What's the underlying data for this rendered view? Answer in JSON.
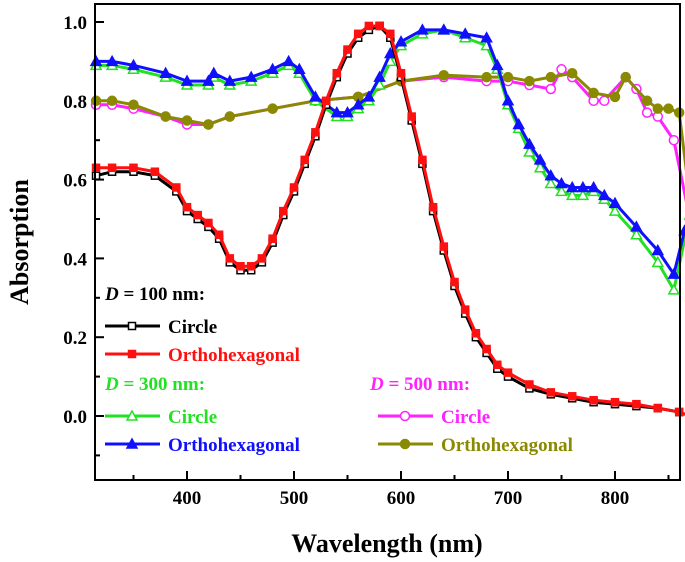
{
  "chart_data": {
    "type": "line",
    "xlabel": "Wavelength (nm)",
    "ylabel": "Absorption",
    "xlim": [
      313,
      870
    ],
    "ylim": [
      -0.16,
      1.05
    ],
    "xticks": [
      400,
      500,
      600,
      700,
      800
    ],
    "yticks": [
      0.0,
      0.2,
      0.4,
      0.6,
      0.8,
      1.0
    ],
    "ytick_labels": [
      "0.0",
      "0.2",
      "0.4",
      "0.6",
      "0.8",
      "1.0"
    ],
    "grid": false,
    "legend_groups": [
      {
        "label_prefix": "D",
        "label_suffix": " = 100 nm:",
        "color": "#000000"
      },
      {
        "label_prefix": "D",
        "label_suffix": " = 300 nm:",
        "color": "#22e022"
      },
      {
        "label_prefix": "D",
        "label_suffix": " = 500 nm:",
        "color": "#ff22ff"
      }
    ],
    "series": [
      {
        "name": "Circle",
        "group": "D = 100 nm",
        "color": "#000000",
        "marker": "square-open",
        "x": [
          315,
          330,
          350,
          370,
          390,
          400,
          410,
          420,
          430,
          440,
          450,
          460,
          470,
          480,
          490,
          500,
          510,
          520,
          530,
          540,
          550,
          560,
          570,
          580,
          590,
          600,
          610,
          620,
          630,
          640,
          650,
          660,
          670,
          680,
          690,
          700,
          720,
          740,
          760,
          780,
          800,
          820,
          840,
          860,
          870
        ],
        "y": [
          0.61,
          0.62,
          0.62,
          0.61,
          0.57,
          0.52,
          0.5,
          0.48,
          0.45,
          0.39,
          0.37,
          0.37,
          0.39,
          0.44,
          0.51,
          0.57,
          0.64,
          0.71,
          0.79,
          0.86,
          0.92,
          0.96,
          0.98,
          0.99,
          0.96,
          0.86,
          0.75,
          0.64,
          0.52,
          0.42,
          0.33,
          0.26,
          0.2,
          0.16,
          0.12,
          0.1,
          0.07,
          0.055,
          0.045,
          0.035,
          0.03,
          0.025,
          0.02,
          0.01,
          0.0
        ]
      },
      {
        "name": "Orthohexagonal",
        "group": "D = 100 nm",
        "color": "#ff1010",
        "marker": "square-filled",
        "x": [
          315,
          330,
          350,
          370,
          390,
          400,
          410,
          420,
          430,
          440,
          450,
          460,
          470,
          480,
          490,
          500,
          510,
          520,
          530,
          540,
          550,
          560,
          570,
          580,
          590,
          600,
          610,
          620,
          630,
          640,
          650,
          660,
          670,
          680,
          690,
          700,
          720,
          740,
          760,
          780,
          800,
          820,
          840,
          860,
          870
        ],
        "y": [
          0.63,
          0.63,
          0.63,
          0.62,
          0.58,
          0.53,
          0.51,
          0.49,
          0.46,
          0.4,
          0.38,
          0.38,
          0.4,
          0.45,
          0.52,
          0.58,
          0.65,
          0.72,
          0.8,
          0.87,
          0.93,
          0.97,
          0.99,
          0.99,
          0.97,
          0.87,
          0.76,
          0.65,
          0.53,
          0.43,
          0.34,
          0.27,
          0.21,
          0.17,
          0.13,
          0.11,
          0.08,
          0.06,
          0.05,
          0.04,
          0.035,
          0.03,
          0.02,
          0.01,
          0.0
        ]
      },
      {
        "name": "Circle",
        "group": "D = 300 nm",
        "color": "#22e022",
        "marker": "triangle-open",
        "x": [
          315,
          330,
          350,
          380,
          400,
          420,
          425,
          440,
          460,
          480,
          495,
          505,
          520,
          540,
          550,
          560,
          570,
          580,
          590,
          600,
          620,
          640,
          660,
          680,
          690,
          700,
          710,
          720,
          730,
          740,
          750,
          760,
          770,
          780,
          790,
          800,
          820,
          840,
          855,
          870
        ],
        "y": [
          0.89,
          0.89,
          0.88,
          0.86,
          0.84,
          0.84,
          0.86,
          0.84,
          0.85,
          0.87,
          0.89,
          0.87,
          0.8,
          0.76,
          0.76,
          0.78,
          0.8,
          0.84,
          0.9,
          0.94,
          0.97,
          0.98,
          0.96,
          0.94,
          0.88,
          0.79,
          0.73,
          0.67,
          0.63,
          0.59,
          0.57,
          0.56,
          0.56,
          0.57,
          0.55,
          0.52,
          0.46,
          0.39,
          0.32,
          0.51
        ]
      },
      {
        "name": "Orthohexagonal",
        "group": "D = 300 nm",
        "color": "#1010ff",
        "marker": "triangle-filled",
        "x": [
          315,
          330,
          350,
          380,
          400,
          420,
          425,
          440,
          460,
          480,
          495,
          505,
          520,
          540,
          550,
          560,
          570,
          580,
          590,
          600,
          620,
          640,
          660,
          680,
          690,
          700,
          710,
          720,
          730,
          740,
          750,
          760,
          770,
          780,
          790,
          800,
          820,
          840,
          855,
          865,
          870
        ],
        "y": [
          0.9,
          0.9,
          0.89,
          0.87,
          0.85,
          0.85,
          0.87,
          0.85,
          0.86,
          0.88,
          0.9,
          0.88,
          0.81,
          0.77,
          0.77,
          0.79,
          0.81,
          0.86,
          0.92,
          0.95,
          0.98,
          0.98,
          0.97,
          0.96,
          0.89,
          0.8,
          0.74,
          0.69,
          0.65,
          0.61,
          0.59,
          0.58,
          0.58,
          0.58,
          0.56,
          0.54,
          0.48,
          0.42,
          0.36,
          0.47,
          0.47
        ]
      },
      {
        "name": "Circle",
        "group": "D = 500 nm",
        "color": "#ff22ff",
        "marker": "circle-open",
        "x": [
          315,
          330,
          350,
          380,
          400,
          420,
          440,
          480,
          520,
          560,
          600,
          640,
          680,
          700,
          720,
          740,
          750,
          760,
          780,
          790,
          810,
          820,
          830,
          840,
          855,
          870
        ],
        "y": [
          0.79,
          0.79,
          0.78,
          0.76,
          0.74,
          0.74,
          0.76,
          0.78,
          0.8,
          0.81,
          0.85,
          0.86,
          0.85,
          0.85,
          0.84,
          0.83,
          0.88,
          0.86,
          0.8,
          0.8,
          0.86,
          0.83,
          0.77,
          0.76,
          0.7,
          0.5
        ]
      },
      {
        "name": "Orthohexagonal",
        "group": "D = 500 nm",
        "color": "#8a8a00",
        "marker": "circle-filled",
        "x": [
          315,
          330,
          350,
          380,
          400,
          420,
          440,
          480,
          520,
          560,
          600,
          640,
          680,
          700,
          720,
          740,
          760,
          780,
          800,
          810,
          830,
          840,
          850,
          860,
          870
        ],
        "y": [
          0.8,
          0.8,
          0.79,
          0.76,
          0.75,
          0.74,
          0.76,
          0.78,
          0.8,
          0.81,
          0.85,
          0.865,
          0.86,
          0.86,
          0.85,
          0.86,
          0.87,
          0.82,
          0.81,
          0.86,
          0.8,
          0.78,
          0.78,
          0.77,
          0.55
        ]
      }
    ]
  }
}
